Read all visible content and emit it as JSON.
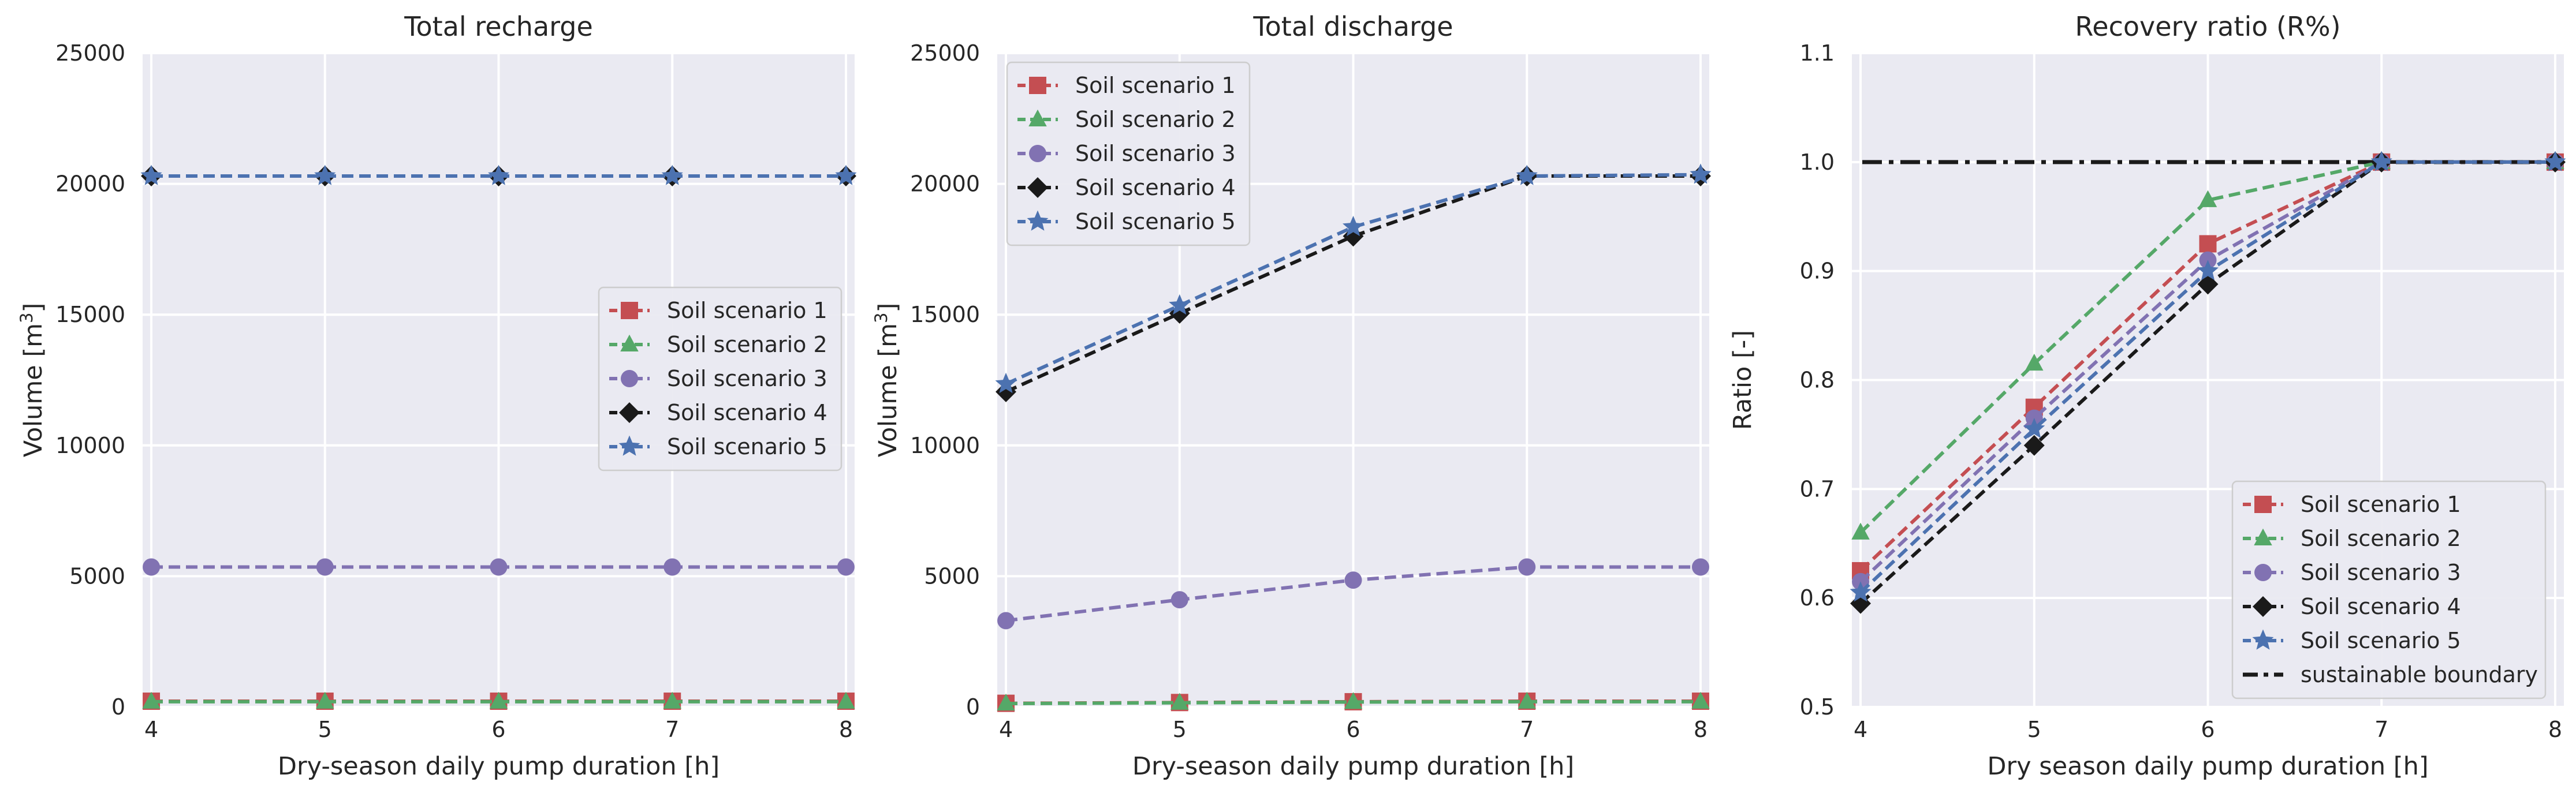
{
  "colors": {
    "Soil scenario 1": "#c44e52",
    "Soil scenario 2": "#55a868",
    "Soil scenario 3": "#8172b2",
    "Soil scenario 4": "#1a1a1a",
    "Soil scenario 5": "#4c72b0",
    "sustainable boundary": "#1a1a1a"
  },
  "markers": {
    "Soil scenario 1": "square",
    "Soil scenario 2": "triangle",
    "Soil scenario 3": "circle",
    "Soil scenario 4": "diamond",
    "Soil scenario 5": "star"
  },
  "chart_data": [
    {
      "type": "line",
      "title": "Total recharge",
      "xlabel": "Dry-season daily pump duration [h]",
      "ylabel_main": "Volume [m",
      "ylabel_sup": "3",
      "ylabel_end": "]",
      "x": [
        4,
        5,
        6,
        7,
        8
      ],
      "xlim": [
        3.95,
        8.05
      ],
      "ylim": [
        0,
        25000
      ],
      "yticks": [
        "0",
        "5000",
        "10000",
        "15000",
        "20000",
        "25000"
      ],
      "ytick_values": [
        0,
        5000,
        10000,
        15000,
        20000,
        25000
      ],
      "xticks": [
        "4",
        "5",
        "6",
        "7",
        "8"
      ],
      "grid": true,
      "legend": "center-right",
      "series": [
        {
          "name": "Soil scenario 1",
          "values": [
            220,
            220,
            220,
            220,
            220
          ]
        },
        {
          "name": "Soil scenario 2",
          "values": [
            200,
            200,
            200,
            200,
            200
          ]
        },
        {
          "name": "Soil scenario 3",
          "values": [
            5350,
            5350,
            5350,
            5350,
            5350
          ]
        },
        {
          "name": "Soil scenario 4",
          "values": [
            20300,
            20300,
            20300,
            20300,
            20300
          ]
        },
        {
          "name": "Soil scenario 5",
          "values": [
            20300,
            20300,
            20300,
            20300,
            20300
          ]
        }
      ]
    },
    {
      "type": "line",
      "title": "Total discharge",
      "xlabel": "Dry-season daily pump duration [h]",
      "ylabel_main": "Volume [m",
      "ylabel_sup": "3",
      "ylabel_end": "]",
      "x": [
        4,
        5,
        6,
        7,
        8
      ],
      "xlim": [
        3.95,
        8.05
      ],
      "ylim": [
        0,
        25000
      ],
      "yticks": [
        "0",
        "5000",
        "10000",
        "15000",
        "20000",
        "25000"
      ],
      "ytick_values": [
        0,
        5000,
        10000,
        15000,
        20000,
        25000
      ],
      "xticks": [
        "4",
        "5",
        "6",
        "7",
        "8"
      ],
      "grid": true,
      "legend": "upper-left",
      "series": [
        {
          "name": "Soil scenario 1",
          "values": [
            140,
            170,
            200,
            220,
            220
          ]
        },
        {
          "name": "Soil scenario 2",
          "values": [
            130,
            160,
            190,
            200,
            200
          ]
        },
        {
          "name": "Soil scenario 3",
          "values": [
            3300,
            4100,
            4850,
            5350,
            5350
          ]
        },
        {
          "name": "Soil scenario 4",
          "values": [
            12050,
            15050,
            18000,
            20300,
            20300
          ]
        },
        {
          "name": "Soil scenario 5",
          "values": [
            12350,
            15350,
            18350,
            20300,
            20350
          ]
        }
      ]
    },
    {
      "type": "line",
      "title": "Recovery ratio (R%)",
      "xlabel": "Dry  season daily pump duration [h]",
      "ylabel_main": "Ratio [-]",
      "ylabel_sup": "",
      "ylabel_end": "",
      "x": [
        4,
        5,
        6,
        7,
        8
      ],
      "xlim": [
        3.95,
        8.05
      ],
      "ylim": [
        0.5,
        1.1
      ],
      "yticks": [
        "0.5",
        "0.6",
        "0.7",
        "0.8",
        "0.9",
        "1.0",
        "1.1"
      ],
      "ytick_values": [
        0.5,
        0.6,
        0.7,
        0.8,
        0.9,
        1.0,
        1.1
      ],
      "xticks": [
        "4",
        "5",
        "6",
        "7",
        "8"
      ],
      "grid": true,
      "legend": "lower-right",
      "reference_line": {
        "name": "sustainable boundary",
        "value": 1.0
      },
      "series": [
        {
          "name": "Soil scenario 1",
          "values": [
            0.625,
            0.775,
            0.925,
            1.0,
            1.0
          ]
        },
        {
          "name": "Soil scenario 2",
          "values": [
            0.66,
            0.815,
            0.965,
            1.0,
            1.0
          ]
        },
        {
          "name": "Soil scenario 3",
          "values": [
            0.615,
            0.765,
            0.91,
            1.0,
            1.0
          ]
        },
        {
          "name": "Soil scenario 4",
          "values": [
            0.595,
            0.74,
            0.888,
            1.0,
            1.0
          ]
        },
        {
          "name": "Soil scenario 5",
          "values": [
            0.605,
            0.755,
            0.9,
            1.0,
            1.0
          ]
        }
      ]
    }
  ]
}
